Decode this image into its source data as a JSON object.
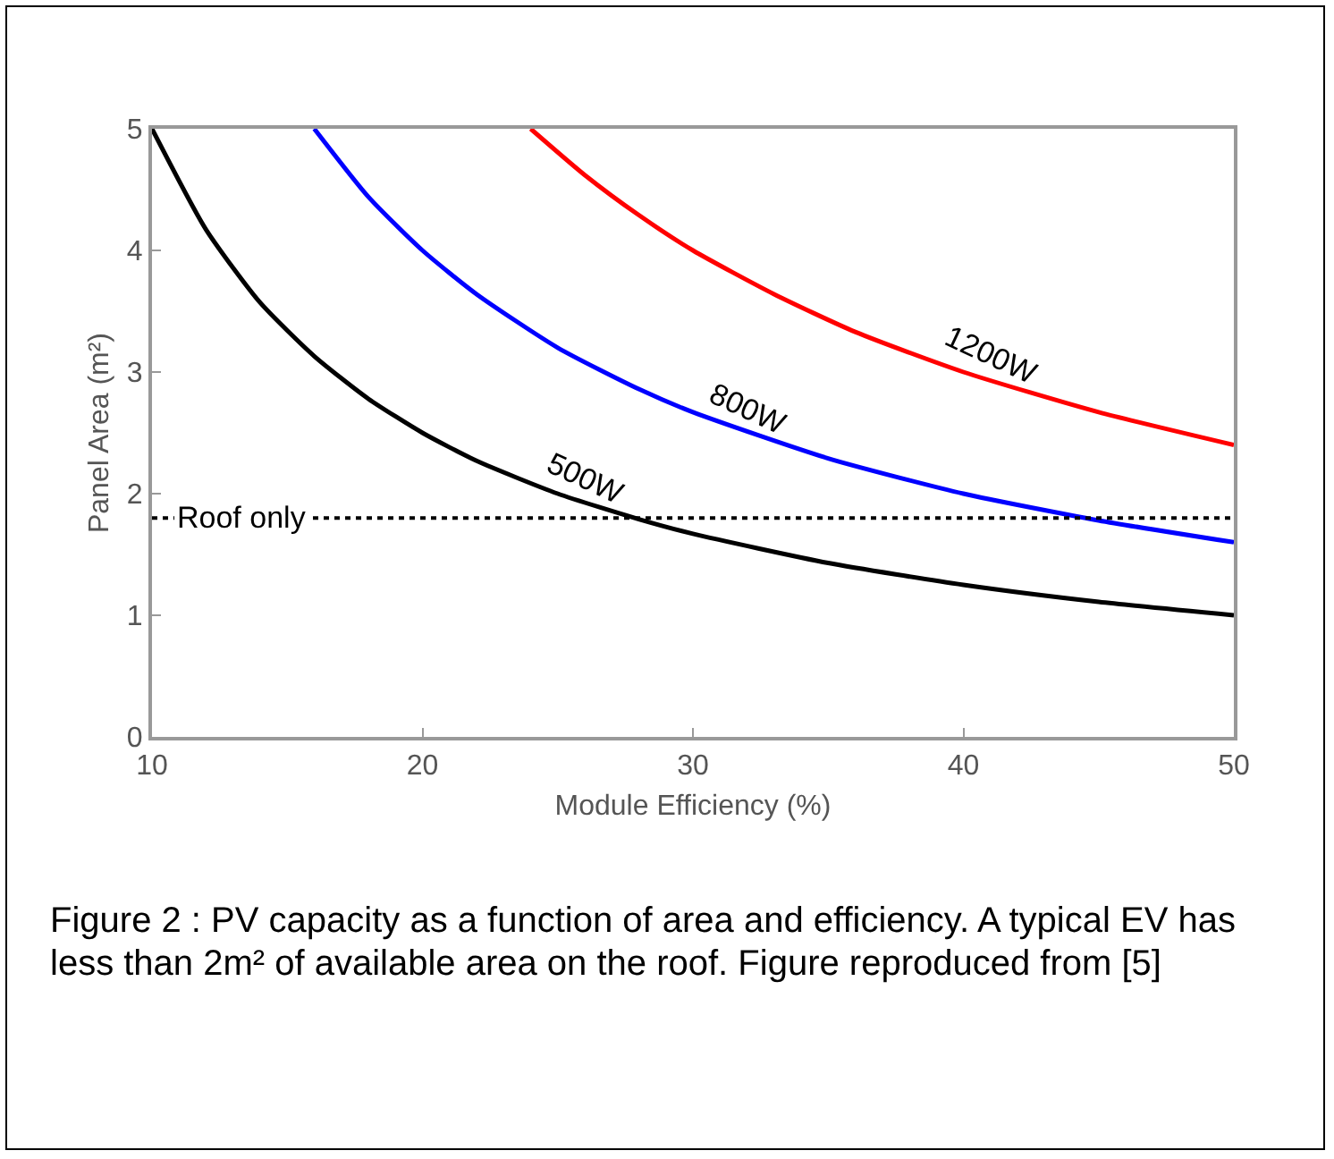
{
  "chart_data": {
    "type": "line",
    "xlabel": "Module Efficiency (%)",
    "ylabel": "Panel Area (m²)",
    "xlim": [
      10,
      50
    ],
    "ylim": [
      0,
      5
    ],
    "xticks": [
      10,
      20,
      30,
      40,
      50
    ],
    "yticks": [
      0,
      1,
      2,
      3,
      4,
      5
    ],
    "grid": false,
    "legend": false,
    "line_style": "solid",
    "marker": "none",
    "series": [
      {
        "color": "#000000",
        "x": [
          10,
          12,
          14,
          16,
          18,
          20,
          22,
          25,
          28,
          30,
          35,
          40,
          45,
          50
        ],
        "values": [
          5,
          4.17,
          3.57,
          3.13,
          2.78,
          2.5,
          2.27,
          2.0,
          1.79,
          1.67,
          1.43,
          1.25,
          1.11,
          1.0
        ]
      },
      {
        "color": "#0000ff",
        "x": [
          16,
          18,
          20,
          22,
          25,
          28,
          30,
          35,
          40,
          45,
          50
        ],
        "values": [
          5,
          4.44,
          4.0,
          3.64,
          3.2,
          2.86,
          2.67,
          2.29,
          2.0,
          1.78,
          1.6
        ]
      },
      {
        "color": "#ff0000",
        "x": [
          24,
          26,
          28,
          30,
          33,
          36,
          40,
          45,
          50
        ],
        "values": [
          5,
          4.62,
          4.29,
          4.0,
          3.64,
          3.33,
          3.0,
          2.67,
          2.4
        ]
      }
    ],
    "ref_lines": [
      {
        "axis": "y",
        "value": 1.8,
        "label": "Roof only",
        "color": "#000000",
        "line_style": "dotted"
      }
    ],
    "annotations": [
      {
        "text": "500W",
        "x": 26,
        "y": 1.92
      },
      {
        "text": "800W",
        "x": 32,
        "y": 2.5
      },
      {
        "text": "1200W",
        "x": 41,
        "y": 2.93
      },
      "Figure 2 : PV capacity as a function of area and efficiency.  A typical EV has less than 2m² of available area on the roof. Figure reproduced from [5]"
    ]
  }
}
